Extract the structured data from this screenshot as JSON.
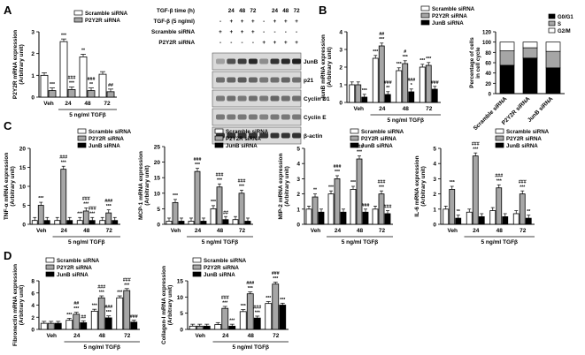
{
  "panel_letters": [
    "A",
    "B",
    "C",
    "D"
  ],
  "xaxis_group_label": "5 ng/ml TGFβ",
  "legend": {
    "scramble": "Scramble siRNA",
    "p2y2r": "P2Y2R siRNA",
    "junb": "JunB siRNA"
  },
  "colors": {
    "scramble": "#ffffff",
    "p2y2r": "#a6a6a6",
    "junb": "#000000",
    "bar_stroke": "#000000"
  },
  "blot": {
    "row_labels": [
      "TGF-β time (h)",
      "TGF-β (5 ng/ml)",
      "Scramble siRNA",
      "P2Y2R siRNA"
    ],
    "row_values": [
      [
        "",
        "24",
        "48",
        "72",
        "",
        "24",
        "48",
        "72"
      ],
      [
        "-",
        "+",
        "+",
        "+",
        "-",
        "+",
        "+",
        "+"
      ],
      [
        "+",
        "+",
        "+",
        "+",
        "-",
        "-",
        "-",
        "-"
      ],
      [
        "-",
        "-",
        "-",
        "-",
        "+",
        "+",
        "+",
        "+"
      ]
    ],
    "band_labels": [
      "JunB",
      "p21",
      "Cyclin D1",
      "Cyclin E",
      "β-actin"
    ]
  },
  "cellcycle": {
    "ylabel": "Percentage of cells in cell cycle",
    "legend": [
      "G0/G1",
      "S",
      "G2/M"
    ]
  },
  "chart_data": [
    {
      "id": "A",
      "type": "bar",
      "ylabel": "P2Y2R mRNA expression (Arbitrary unit)",
      "categories": [
        "Veh",
        "24",
        "48",
        "72"
      ],
      "ylim": [
        0,
        3
      ],
      "yticks": [
        0,
        1,
        2,
        3
      ],
      "series": [
        {
          "name": "Scramble siRNA",
          "values": [
            1.0,
            2.55,
            1.85,
            1.05
          ]
        },
        {
          "name": "P2Y2R siRNA",
          "values": [
            0.3,
            0.35,
            0.3,
            0.25
          ]
        }
      ],
      "annotations": [
        {
          "cat": 0,
          "series": 1,
          "text": [
            "***"
          ]
        },
        {
          "cat": 1,
          "series": 0,
          "text": [
            "***"
          ]
        },
        {
          "cat": 1,
          "series": 1,
          "text": [
            "###",
            "***"
          ]
        },
        {
          "cat": 2,
          "series": 0,
          "text": [
            "**"
          ]
        },
        {
          "cat": 2,
          "series": 1,
          "text": [
            "###",
            "**"
          ]
        },
        {
          "cat": 3,
          "series": 1,
          "text": [
            "##"
          ]
        }
      ]
    },
    {
      "id": "B",
      "type": "bar",
      "ylabel": "JunB mRNA expression (Arbitrary unit)",
      "categories": [
        "Veh",
        "24",
        "48",
        "72"
      ],
      "ylim": [
        0,
        4
      ],
      "yticks": [
        0,
        1,
        2,
        3,
        4
      ],
      "series": [
        {
          "name": "Scramble siRNA",
          "values": [
            1.0,
            2.5,
            1.8,
            2.0
          ]
        },
        {
          "name": "P2Y2R siRNA",
          "values": [
            1.0,
            3.2,
            2.2,
            2.1
          ]
        },
        {
          "name": "JunB siRNA",
          "values": [
            0.3,
            0.45,
            0.6,
            0.75
          ]
        }
      ],
      "annotations": [
        {
          "cat": 0,
          "series": 2,
          "text": [
            "***"
          ]
        },
        {
          "cat": 1,
          "series": 0,
          "text": [
            "***"
          ]
        },
        {
          "cat": 1,
          "series": 1,
          "text": [
            "##",
            "***"
          ]
        },
        {
          "cat": 1,
          "series": 2,
          "text": [
            "###",
            "**"
          ]
        },
        {
          "cat": 2,
          "series": 0,
          "text": [
            "***"
          ]
        },
        {
          "cat": 2,
          "series": 1,
          "text": [
            "#",
            "***"
          ]
        },
        {
          "cat": 2,
          "series": 2,
          "text": [
            "###",
            "*"
          ]
        },
        {
          "cat": 3,
          "series": 0,
          "text": [
            "***"
          ]
        },
        {
          "cat": 3,
          "series": 1,
          "text": [
            "***"
          ]
        },
        {
          "cat": 3,
          "series": 2,
          "text": [
            "###"
          ]
        }
      ]
    },
    {
      "id": "B2",
      "type": "bar",
      "stacked": true,
      "categories": [
        "Scramble siRNA",
        "P2Y2R siRNA",
        "JunB siRNA"
      ],
      "ylim": [
        0,
        120
      ],
      "yticks": [
        0,
        20,
        40,
        60,
        80,
        100,
        120
      ],
      "series": [
        {
          "name": "G0/G1",
          "values": [
            55,
            69,
            50
          ]
        },
        {
          "name": "S",
          "values": [
            28,
            20,
            32
          ]
        },
        {
          "name": "G2/M",
          "values": [
            17,
            11,
            18
          ]
        }
      ]
    },
    {
      "id": "C1",
      "type": "bar",
      "ylabel": "TNF-α mRNA expression (Arbitrary unit)",
      "categories": [
        "Veh",
        "24",
        "48",
        "72"
      ],
      "ylim": [
        0,
        20
      ],
      "yticks": [
        0,
        5,
        10,
        15,
        20
      ],
      "series": [
        {
          "name": "Scramble siRNA",
          "values": [
            1.0,
            1.0,
            1.0,
            1.0
          ]
        },
        {
          "name": "P2Y2R siRNA",
          "values": [
            5.0,
            14.5,
            3.5,
            3.0
          ]
        },
        {
          "name": "JunB siRNA",
          "values": [
            1.0,
            1.0,
            1.0,
            1.0
          ]
        }
      ],
      "annotations": [
        {
          "cat": 0,
          "series": 1,
          "text": [
            "***"
          ]
        },
        {
          "cat": 1,
          "series": 1,
          "text": [
            "###",
            "***"
          ]
        },
        {
          "cat": 2,
          "series": 0,
          "text": [
            "***"
          ]
        },
        {
          "cat": 2,
          "series": 1,
          "text": [
            "###",
            "***"
          ]
        },
        {
          "cat": 2,
          "series": 2,
          "text": [
            "###",
            "***"
          ]
        },
        {
          "cat": 3,
          "series": 1,
          "text": [
            "###",
            "***"
          ]
        }
      ]
    },
    {
      "id": "C2",
      "type": "bar",
      "ylabel": "MCP-1 mRNA expression (Arbitrary unit)",
      "categories": [
        "Veh",
        "24",
        "48",
        "72"
      ],
      "ylim": [
        0,
        25
      ],
      "yticks": [
        0,
        5,
        10,
        15,
        20,
        25
      ],
      "series": [
        {
          "name": "Scramble siRNA",
          "values": [
            1.0,
            1.0,
            5.0,
            1.5
          ]
        },
        {
          "name": "P2Y2R siRNA",
          "values": [
            7.0,
            17.0,
            12.0,
            10.0
          ]
        },
        {
          "name": "JunB siRNA",
          "values": [
            1.0,
            1.0,
            1.5,
            1.0
          ]
        }
      ],
      "annotations": [
        {
          "cat": 0,
          "series": 1,
          "text": [
            "***"
          ]
        },
        {
          "cat": 1,
          "series": 1,
          "text": [
            "###",
            "***"
          ]
        },
        {
          "cat": 2,
          "series": 0,
          "text": [
            "***"
          ]
        },
        {
          "cat": 2,
          "series": 1,
          "text": [
            "###",
            "***"
          ]
        },
        {
          "cat": 2,
          "series": 2,
          "text": [
            "##"
          ]
        },
        {
          "cat": 3,
          "series": 1,
          "text": [
            "###",
            "***"
          ]
        }
      ]
    },
    {
      "id": "C3",
      "type": "bar",
      "ylabel": "MIP-2 mRNA expression (Arbitrary unit)",
      "categories": [
        "Veh",
        "24",
        "48",
        "72"
      ],
      "ylim": [
        0,
        5
      ],
      "yticks": [
        0,
        1,
        2,
        3,
        4,
        5
      ],
      "series": [
        {
          "name": "Scramble siRNA",
          "values": [
            1.0,
            2.0,
            2.3,
            1.0
          ]
        },
        {
          "name": "P2Y2R siRNA",
          "values": [
            1.8,
            3.0,
            4.3,
            2.0
          ]
        },
        {
          "name": "JunB siRNA",
          "values": [
            0.8,
            0.8,
            0.8,
            0.7
          ]
        }
      ],
      "annotations": [
        {
          "cat": 0,
          "series": 1,
          "text": [
            "**"
          ]
        },
        {
          "cat": 1,
          "series": 0,
          "text": [
            "***"
          ]
        },
        {
          "cat": 1,
          "series": 1,
          "text": [
            "###",
            "***"
          ]
        },
        {
          "cat": 2,
          "series": 0,
          "text": [
            "***"
          ]
        },
        {
          "cat": 2,
          "series": 1,
          "text": [
            "###",
            "***"
          ]
        },
        {
          "cat": 2,
          "series": 2,
          "text": [
            "###"
          ]
        },
        {
          "cat": 3,
          "series": 1,
          "text": [
            "###",
            "***"
          ]
        },
        {
          "cat": 3,
          "series": 2,
          "text": [
            "###"
          ]
        }
      ]
    },
    {
      "id": "C4",
      "type": "bar",
      "ylabel": "IL-6 mRNA expression (Arbitrary unit)",
      "categories": [
        "Veh",
        "24",
        "48",
        "72"
      ],
      "ylim": [
        0,
        5
      ],
      "yticks": [
        0,
        1,
        2,
        3,
        4,
        5
      ],
      "series": [
        {
          "name": "Scramble siRNA",
          "values": [
            1.0,
            0.8,
            0.9,
            0.7
          ]
        },
        {
          "name": "P2Y2R siRNA",
          "values": [
            2.3,
            4.5,
            2.4,
            2.0
          ]
        },
        {
          "name": "JunB siRNA",
          "values": [
            0.4,
            0.5,
            0.5,
            0.4
          ]
        }
      ],
      "annotations": [
        {
          "cat": 0,
          "series": 1,
          "text": [
            "***"
          ]
        },
        {
          "cat": 0,
          "series": 2,
          "text": [
            "**"
          ]
        },
        {
          "cat": 1,
          "series": 1,
          "text": [
            "###",
            "***"
          ]
        },
        {
          "cat": 2,
          "series": 1,
          "text": [
            "###",
            "***"
          ]
        },
        {
          "cat": 3,
          "series": 1,
          "text": [
            "###",
            "***"
          ]
        },
        {
          "cat": 3,
          "series": 2,
          "text": [
            "**"
          ]
        }
      ]
    },
    {
      "id": "D1",
      "type": "bar",
      "ylabel": "Fibronectin mRNA expression (Arbitrary unit)",
      "categories": [
        "Veh",
        "24",
        "48",
        "72"
      ],
      "ylim": [
        0,
        8
      ],
      "yticks": [
        0,
        2,
        4,
        6,
        8
      ],
      "series": [
        {
          "name": "Scramble siRNA",
          "values": [
            1.0,
            1.5,
            3.0,
            5.2
          ]
        },
        {
          "name": "P2Y2R siRNA",
          "values": [
            1.0,
            2.5,
            5.2,
            6.4
          ]
        },
        {
          "name": "JunB siRNA",
          "values": [
            1.0,
            1.1,
            1.9,
            1.2
          ]
        }
      ],
      "annotations": [
        {
          "cat": 1,
          "series": 0,
          "text": [
            "***"
          ]
        },
        {
          "cat": 1,
          "series": 1,
          "text": [
            "##",
            "***"
          ]
        },
        {
          "cat": 1,
          "series": 2,
          "text": [
            "##"
          ]
        },
        {
          "cat": 2,
          "series": 0,
          "text": [
            "***"
          ]
        },
        {
          "cat": 2,
          "series": 1,
          "text": [
            "###",
            "***"
          ]
        },
        {
          "cat": 2,
          "series": 2,
          "text": [
            "###",
            "***"
          ]
        },
        {
          "cat": 3,
          "series": 0,
          "text": [
            "***"
          ]
        },
        {
          "cat": 3,
          "series": 1,
          "text": [
            "###",
            "***"
          ]
        },
        {
          "cat": 3,
          "series": 2,
          "text": [
            "###"
          ]
        }
      ]
    },
    {
      "id": "D2",
      "type": "bar",
      "ylabel": "Collagen-I mRNA expression (Arbitrary unit)",
      "categories": [
        "Veh",
        "24",
        "48",
        "72"
      ],
      "ylim": [
        0,
        15
      ],
      "yticks": [
        0,
        5,
        10,
        15
      ],
      "series": [
        {
          "name": "Scramble siRNA",
          "values": [
            1.0,
            1.5,
            5.5,
            8.0
          ]
        },
        {
          "name": "P2Y2R siRNA",
          "values": [
            1.0,
            6.5,
            11.0,
            14.0
          ]
        },
        {
          "name": "JunB siRNA",
          "values": [
            1.0,
            1.0,
            3.5,
            7.5
          ]
        }
      ],
      "annotations": [
        {
          "cat": 1,
          "series": 1,
          "text": [
            "###",
            "***"
          ]
        },
        {
          "cat": 1,
          "series": 2,
          "text": [
            "***"
          ]
        },
        {
          "cat": 2,
          "series": 0,
          "text": [
            "***"
          ]
        },
        {
          "cat": 2,
          "series": 1,
          "text": [
            "###",
            "***"
          ]
        },
        {
          "cat": 2,
          "series": 2,
          "text": [
            "###",
            "***"
          ]
        },
        {
          "cat": 3,
          "series": 0,
          "text": [
            "***"
          ]
        },
        {
          "cat": 3,
          "series": 1,
          "text": [
            "###",
            "***"
          ]
        },
        {
          "cat": 3,
          "series": 2,
          "text": [
            "***"
          ]
        }
      ]
    }
  ]
}
